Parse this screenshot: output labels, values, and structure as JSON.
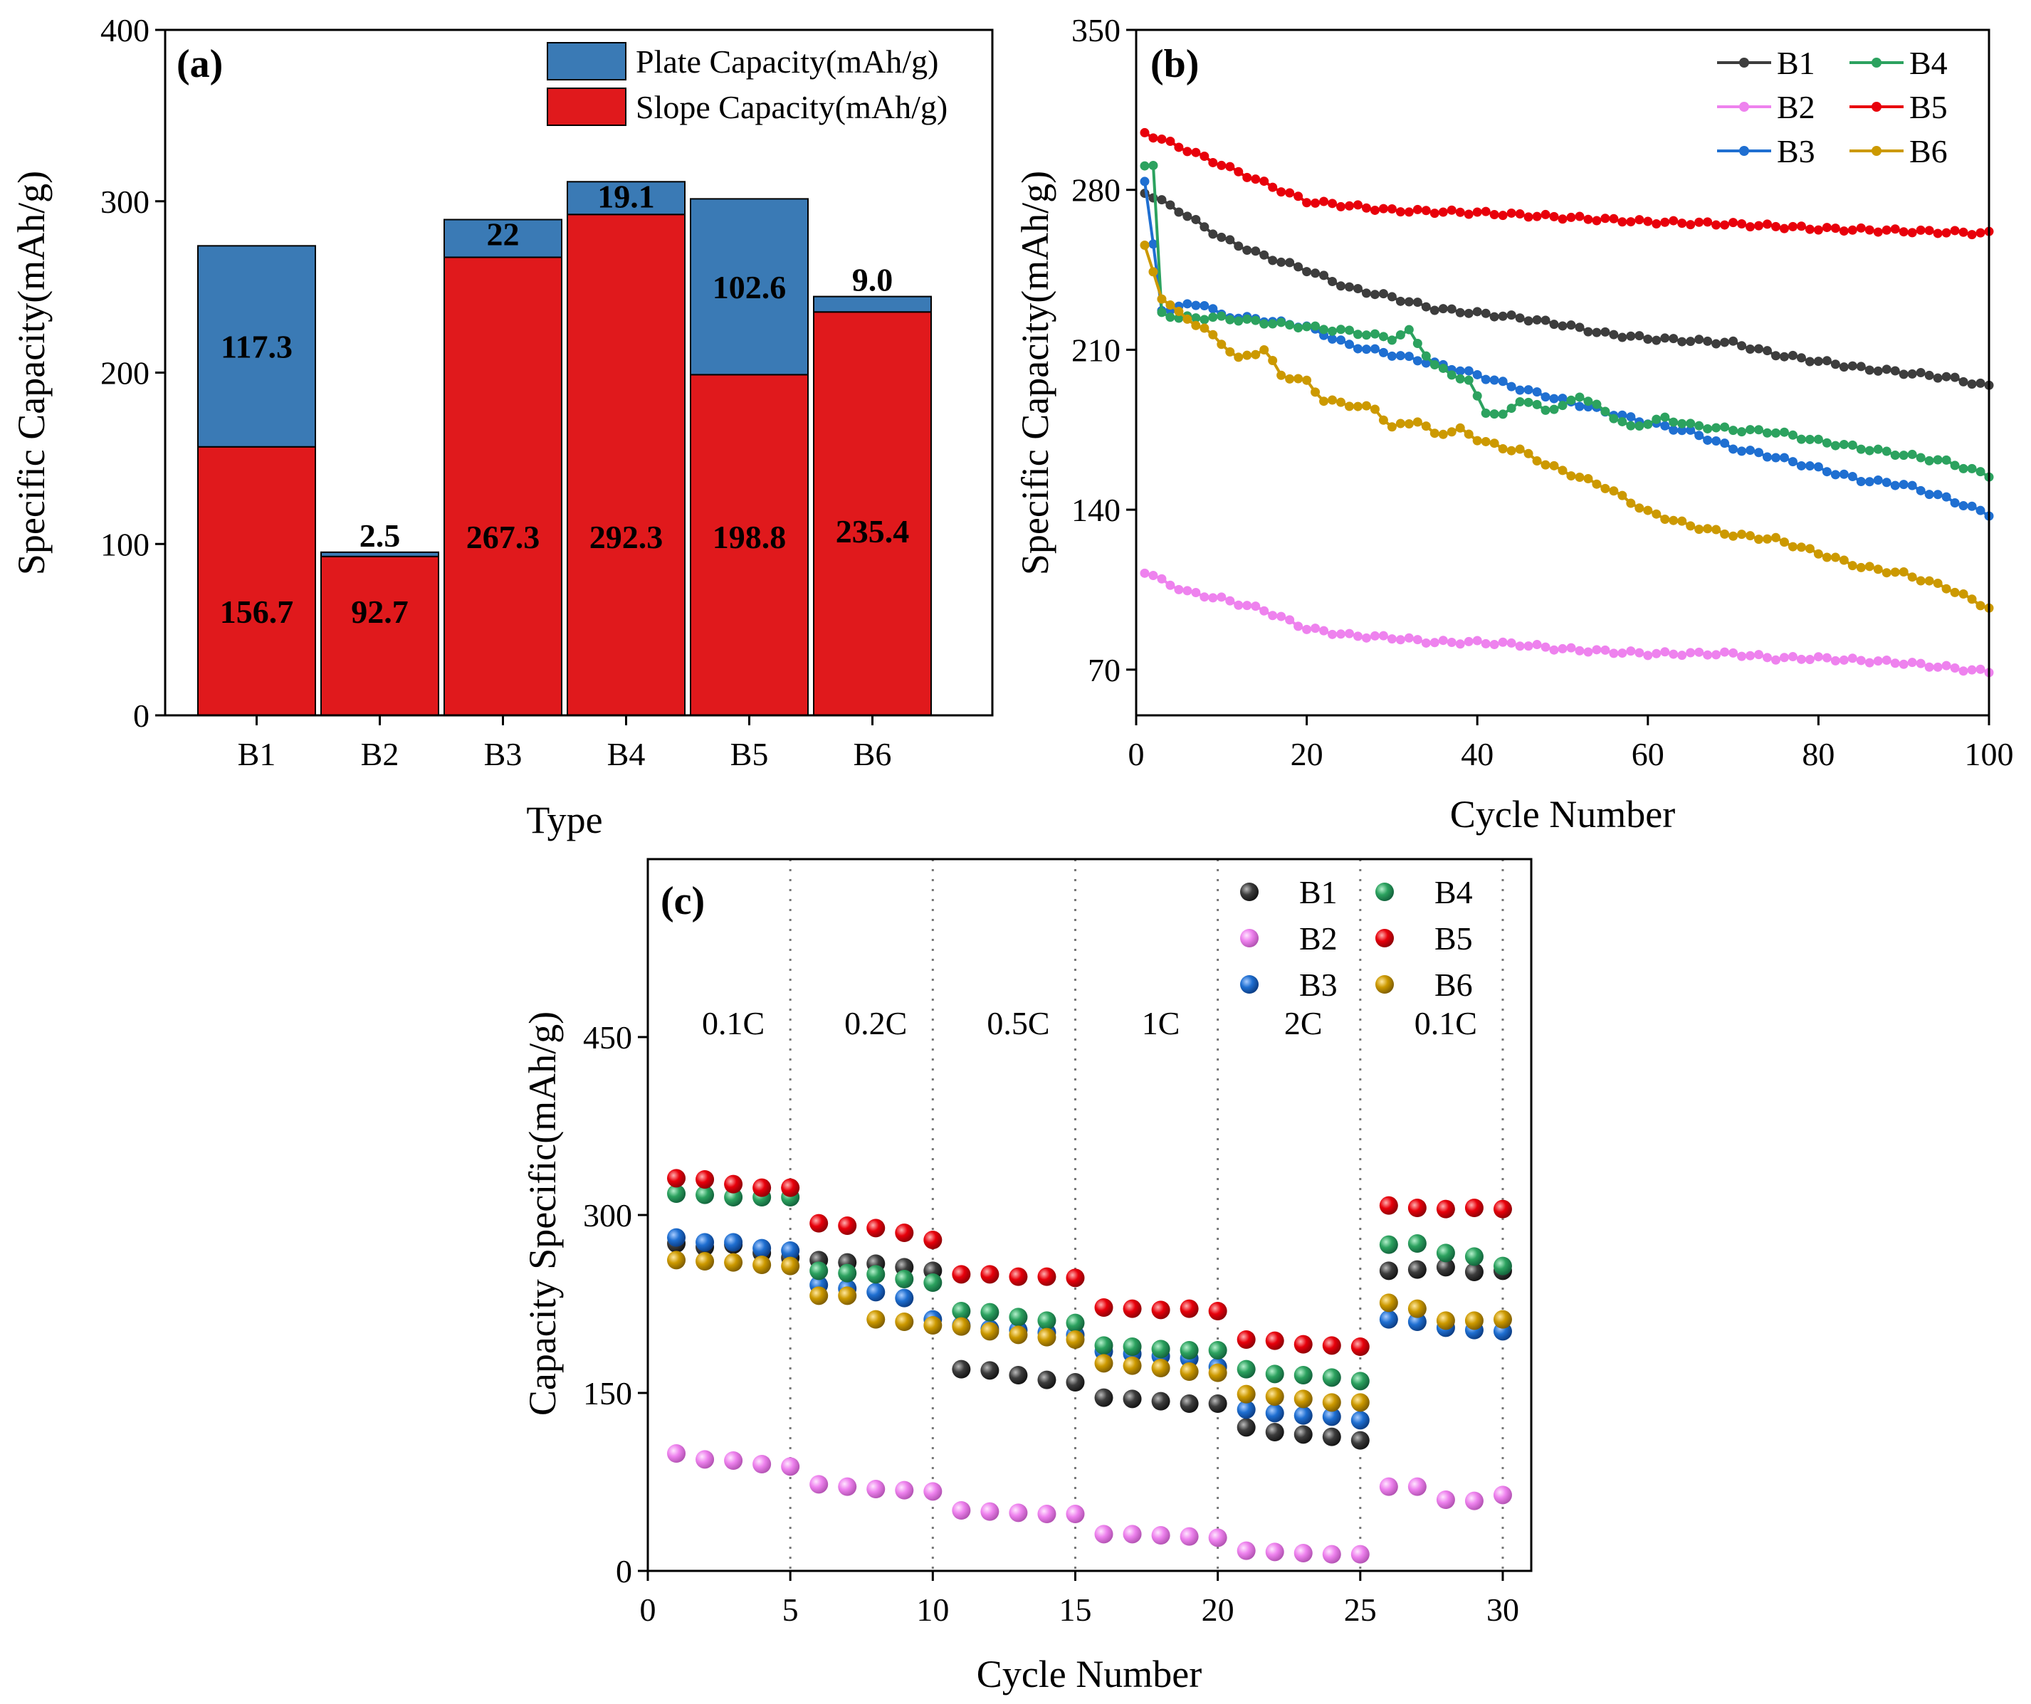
{
  "colors": {
    "plate": "#3a7ab5",
    "slope": "#e0191c",
    "B1": "#3d3d3d",
    "B2": "#ee82ee",
    "B3": "#1f6fd1",
    "B4": "#2ca25f",
    "B5": "#e8000b",
    "B6": "#cc9900"
  },
  "chart_data": [
    {
      "panel": "(a)",
      "type": "bar",
      "stacked": true,
      "xlabel": "Type",
      "ylabel": "Specific Capacity(mAh/g)",
      "ylim": [
        0,
        400
      ],
      "yticks": [
        "0",
        "100",
        "200",
        "300",
        "400"
      ],
      "categories": [
        "B1",
        "B2",
        "B3",
        "B4",
        "B5",
        "B6"
      ],
      "series": [
        {
          "name": "Slope Capacity(mAh/g)",
          "values": [
            156.7,
            92.7,
            267.3,
            292.3,
            198.8,
            235.4
          ],
          "labels": [
            "156.7",
            "92.7",
            "267.3",
            "292.3",
            "198.8",
            "235.4"
          ]
        },
        {
          "name": "Plate Capacity(mAh/g)",
          "values": [
            117.3,
            2.5,
            22,
            19.1,
            102.6,
            9.0
          ],
          "labels": [
            "117.3",
            "2.5",
            "22",
            "19.1",
            "102.6",
            "9.0"
          ]
        }
      ],
      "legend": [
        "Plate Capacity(mAh/g)",
        "Slope Capacity(mAh/g)"
      ]
    },
    {
      "panel": "(b)",
      "type": "line",
      "xlabel": "Cycle Number",
      "ylabel": "Specific Capacity(mAh/g)",
      "xlim": [
        0,
        100
      ],
      "ylim": [
        50,
        350
      ],
      "xticks": [
        "0",
        "20",
        "40",
        "60",
        "80",
        "100"
      ],
      "yticks": [
        "70",
        "140",
        "210",
        "280",
        "350"
      ],
      "series": [
        {
          "name": "B1",
          "anchors": [
            [
              1,
              279
            ],
            [
              5,
              271
            ],
            [
              10,
              259
            ],
            [
              15,
              251
            ],
            [
              20,
              245
            ],
            [
              25,
              237
            ],
            [
              30,
              233
            ],
            [
              35,
              228
            ],
            [
              40,
              226
            ],
            [
              45,
              224
            ],
            [
              50,
              221
            ],
            [
              55,
              217
            ],
            [
              60,
              215
            ],
            [
              65,
              214
            ],
            [
              70,
              213
            ],
            [
              75,
              208
            ],
            [
              80,
              205
            ],
            [
              85,
              202
            ],
            [
              90,
              200
            ],
            [
              95,
              198
            ],
            [
              100,
              194
            ]
          ]
        },
        {
          "name": "B2",
          "anchors": [
            [
              1,
              113
            ],
            [
              3,
              109
            ],
            [
              6,
              104
            ],
            [
              10,
              101
            ],
            [
              15,
              96
            ],
            [
              20,
              88
            ],
            [
              25,
              85
            ],
            [
              30,
              84
            ],
            [
              35,
              82
            ],
            [
              40,
              82
            ],
            [
              45,
              81
            ],
            [
              50,
              79
            ],
            [
              55,
              78
            ],
            [
              60,
              77
            ],
            [
              65,
              77
            ],
            [
              70,
              77
            ],
            [
              75,
              75
            ],
            [
              80,
              75
            ],
            [
              85,
              74
            ],
            [
              90,
              73
            ],
            [
              95,
              71
            ],
            [
              100,
              69
            ]
          ]
        },
        {
          "name": "B3",
          "anchors": [
            [
              1,
              284
            ],
            [
              3,
              227
            ],
            [
              5,
              229
            ],
            [
              8,
              230
            ],
            [
              10,
              225
            ],
            [
              15,
              223
            ],
            [
              20,
              220
            ],
            [
              25,
              212
            ],
            [
              30,
              208
            ],
            [
              35,
              204
            ],
            [
              40,
              199
            ],
            [
              45,
              193
            ],
            [
              50,
              188
            ],
            [
              55,
              183
            ],
            [
              60,
              178
            ],
            [
              65,
              174
            ],
            [
              70,
              167
            ],
            [
              75,
              163
            ],
            [
              80,
              158
            ],
            [
              85,
              153
            ],
            [
              90,
              151
            ],
            [
              95,
              145
            ],
            [
              100,
              138
            ]
          ]
        },
        {
          "name": "B4",
          "anchors": [
            [
              1,
              291
            ],
            [
              2,
              290
            ],
            [
              3,
              226
            ],
            [
              5,
              224
            ],
            [
              10,
              224
            ],
            [
              15,
              222
            ],
            [
              20,
              220
            ],
            [
              25,
              218
            ],
            [
              30,
              215
            ],
            [
              32,
              218
            ],
            [
              35,
              203
            ],
            [
              39,
              196
            ],
            [
              41,
              183
            ],
            [
              43,
              181
            ],
            [
              45,
              188
            ],
            [
              48,
              184
            ],
            [
              50,
              185
            ],
            [
              52,
              190
            ],
            [
              55,
              183
            ],
            [
              58,
              176
            ],
            [
              62,
              180
            ],
            [
              65,
              177
            ],
            [
              70,
              175
            ],
            [
              75,
              174
            ],
            [
              80,
              170
            ],
            [
              85,
              167
            ],
            [
              90,
              164
            ],
            [
              95,
              161
            ],
            [
              100,
              155
            ]
          ]
        },
        {
          "name": "B5",
          "anchors": [
            [
              1,
              305
            ],
            [
              5,
              299
            ],
            [
              10,
              291
            ],
            [
              15,
              283
            ],
            [
              20,
              275
            ],
            [
              25,
              273
            ],
            [
              30,
              271
            ],
            [
              40,
              270
            ],
            [
              50,
              268
            ],
            [
              60,
              266
            ],
            [
              70,
              265
            ],
            [
              80,
              263
            ],
            [
              90,
              262
            ],
            [
              100,
              261
            ]
          ]
        },
        {
          "name": "B6",
          "anchors": [
            [
              1,
              255
            ],
            [
              3,
              233
            ],
            [
              5,
              226
            ],
            [
              8,
              219
            ],
            [
              10,
              213
            ],
            [
              12,
              206
            ],
            [
              15,
              210
            ],
            [
              17,
              199
            ],
            [
              20,
              196
            ],
            [
              22,
              188
            ],
            [
              25,
              186
            ],
            [
              28,
              184
            ],
            [
              30,
              176
            ],
            [
              33,
              179
            ],
            [
              35,
              173
            ],
            [
              38,
              175
            ],
            [
              40,
              171
            ],
            [
              43,
              167
            ],
            [
              45,
              166
            ],
            [
              48,
              160
            ],
            [
              50,
              157
            ],
            [
              55,
              150
            ],
            [
              60,
              139
            ],
            [
              65,
              133
            ],
            [
              70,
              129
            ],
            [
              75,
              127
            ],
            [
              80,
              121
            ],
            [
              85,
              115
            ],
            [
              90,
              112
            ],
            [
              95,
              106
            ],
            [
              100,
              97
            ]
          ]
        }
      ]
    },
    {
      "panel": "(c)",
      "type": "scatter",
      "xlabel": "Cycle Number",
      "ylabel": "Capacity Specific(mAh/g)",
      "xlim": [
        0,
        31
      ],
      "ylim": [
        0,
        600
      ],
      "xticks": [
        "0",
        "5",
        "10",
        "15",
        "20",
        "25",
        "30"
      ],
      "yticks": [
        "0",
        "150",
        "300",
        "450"
      ],
      "rate_labels": [
        "0.1C",
        "0.2C",
        "0.5C",
        "1C",
        "2C",
        "0.1C"
      ],
      "x": [
        1,
        2,
        3,
        4,
        5,
        6,
        7,
        8,
        9,
        10,
        11,
        12,
        13,
        14,
        15,
        16,
        17,
        18,
        19,
        20,
        21,
        22,
        23,
        24,
        25,
        26,
        27,
        28,
        29,
        30
      ],
      "series": [
        {
          "name": "B1",
          "values": [
            276,
            273,
            275,
            268,
            264,
            262,
            260,
            259,
            256,
            253,
            170,
            169,
            165,
            161,
            159,
            146,
            145,
            143,
            141,
            141,
            121,
            117,
            115,
            113,
            110,
            253,
            254,
            256,
            252,
            253
          ]
        },
        {
          "name": "B2",
          "values": [
            99,
            94,
            93,
            90,
            88,
            73,
            71,
            69,
            68,
            67,
            51,
            50,
            49,
            48,
            48,
            31,
            31,
            30,
            29,
            28,
            17,
            16,
            15,
            14,
            14,
            71,
            71,
            60,
            59,
            64
          ]
        },
        {
          "name": "B3",
          "values": [
            281,
            277,
            277,
            272,
            270,
            241,
            238,
            235,
            230,
            212,
            207,
            204,
            203,
            201,
            199,
            185,
            183,
            181,
            179,
            172,
            136,
            133,
            131,
            130,
            127,
            212,
            210,
            205,
            203,
            202
          ]
        },
        {
          "name": "B4",
          "values": [
            318,
            317,
            315,
            315,
            315,
            253,
            251,
            250,
            246,
            243,
            219,
            218,
            214,
            211,
            209,
            190,
            189,
            187,
            186,
            186,
            170,
            166,
            165,
            163,
            160,
            275,
            276,
            268,
            265,
            257
          ]
        },
        {
          "name": "B5",
          "values": [
            331,
            330,
            326,
            323,
            323,
            293,
            291,
            289,
            285,
            279,
            250,
            250,
            248,
            248,
            247,
            222,
            221,
            220,
            221,
            219,
            195,
            194,
            191,
            190,
            189,
            308,
            306,
            305,
            306,
            305
          ]
        },
        {
          "name": "B6",
          "values": [
            262,
            261,
            260,
            258,
            257,
            232,
            232,
            212,
            210,
            207,
            206,
            202,
            199,
            197,
            195,
            175,
            173,
            171,
            168,
            167,
            149,
            147,
            145,
            142,
            142,
            226,
            221,
            211,
            211,
            212
          ]
        }
      ]
    }
  ]
}
